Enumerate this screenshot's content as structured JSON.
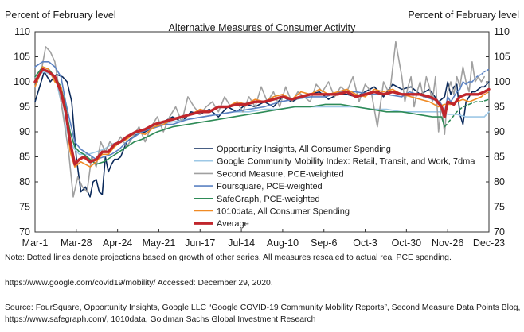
{
  "chart_data": {
    "type": "line",
    "title": "Alternative Measures of Consumer Activity",
    "ylabel_left": "Percent of February level",
    "ylabel_right": "Percent of February level",
    "ylim": [
      70,
      110
    ],
    "yticks": [
      "70",
      "75",
      "80",
      "85",
      "90",
      "95",
      "100",
      "105",
      "110"
    ],
    "x_tick_labels": [
      "Mar-1",
      "Mar-28",
      "Apr-24",
      "May-21",
      "Jun-17",
      "Jul-14",
      "Aug-10",
      "Sep-6",
      "Oct-3",
      "Oct-30",
      "Nov-26",
      "Dec-23"
    ],
    "xlim_days": [
      0,
      297
    ],
    "grid": false,
    "legend_position": "lower-center",
    "series": [
      {
        "name": "Opportunity Insights, All Consumer Spending",
        "color": "#0b2a5b",
        "width": 1.6,
        "dash": "",
        "x": [
          0,
          6,
          10,
          14,
          18,
          21,
          24,
          27,
          30,
          33,
          36,
          38,
          40,
          42,
          44,
          46,
          48,
          50,
          52,
          54,
          56,
          60,
          66,
          72,
          78,
          84,
          90,
          96,
          102,
          108,
          114,
          120,
          126,
          132,
          138,
          144,
          150,
          156,
          162,
          168,
          174,
          180,
          186,
          192,
          198,
          204,
          210,
          216,
          222,
          228,
          234,
          240,
          246,
          252,
          258,
          264,
          268,
          270,
          272,
          274,
          276,
          278,
          280,
          282,
          284,
          286,
          288,
          290,
          292,
          294
        ],
        "y": [
          96,
          102,
          100,
          101.5,
          101,
          100,
          96,
          85,
          78,
          79,
          77,
          80,
          80.5,
          78,
          77.5,
          85,
          82,
          83.5,
          84.5,
          84.5,
          85,
          88,
          89.5,
          90,
          91,
          92,
          93,
          92,
          94,
          93.5,
          94.5,
          93,
          95,
          94,
          95.5,
          95,
          96,
          95,
          97,
          96,
          97,
          97.5,
          98,
          96.5,
          97.5,
          97.5,
          97,
          98,
          99,
          97,
          99.5,
          98.5,
          99,
          97.5,
          98.5,
          96,
          97,
          100,
          97.5,
          99,
          99.5,
          93.5,
          91.5,
          96,
          97,
          98,
          98,
          98.5,
          99,
          99
        ]
      },
      {
        "name": "Opportunity Insights (projection)",
        "color": "#0b2a5b",
        "width": 1.6,
        "dash": "2,2",
        "x": [
          294,
          297
        ],
        "y": [
          99,
          100
        ]
      },
      {
        "name": "Google Community Mobility Index: Retail, Transit, and Work, 7dma",
        "color": "#9dc8e6",
        "width": 1.6,
        "dash": "",
        "x": [
          0,
          6,
          10,
          14,
          17,
          20,
          23,
          26,
          29,
          32,
          35,
          40,
          45,
          50,
          55,
          60,
          70,
          80,
          90,
          100,
          110,
          120,
          130,
          140,
          150,
          160,
          170,
          180,
          190,
          200,
          210,
          220,
          230,
          240,
          250,
          260,
          266,
          270,
          276,
          282,
          288,
          294,
          297
        ],
        "y": [
          101,
          102,
          101.5,
          100,
          96,
          91,
          88,
          86.5,
          85.5,
          85.5,
          85.5,
          86,
          86.5,
          87.5,
          88,
          89,
          90,
          91.5,
          92,
          92.5,
          93,
          93.5,
          94,
          94,
          94.5,
          94.5,
          95,
          95,
          95,
          95,
          95,
          94.5,
          94.5,
          94,
          94,
          94,
          94,
          93.5,
          93.5,
          93,
          93,
          93,
          94
        ]
      },
      {
        "name": "Second Measure, PCE-weighted",
        "color": "#a0a0a0",
        "width": 1.6,
        "dash": "",
        "x": [
          0,
          4,
          7,
          10,
          13,
          16,
          19,
          22,
          25,
          28,
          31,
          34,
          37,
          40,
          43,
          46,
          49,
          52,
          56,
          60,
          64,
          68,
          72,
          76,
          80,
          84,
          88,
          92,
          96,
          100,
          104,
          108,
          112,
          116,
          120,
          124,
          128,
          132,
          136,
          140,
          144,
          148,
          152,
          156,
          160,
          164,
          168,
          172,
          176,
          180,
          184,
          188,
          192,
          196,
          200,
          204,
          208,
          212,
          216,
          220,
          224,
          228,
          232,
          236,
          240,
          242,
          244,
          246,
          248,
          250,
          252,
          254,
          256,
          258,
          260,
          262,
          264,
          266,
          268,
          270,
          272,
          274,
          276,
          278,
          280,
          282,
          284,
          286,
          288,
          290,
          292,
          294
        ],
        "y": [
          99,
          102,
          107,
          106,
          104,
          98,
          92,
          86,
          77,
          81,
          79,
          78,
          85,
          83,
          88,
          86,
          88,
          87,
          89,
          87,
          89,
          91,
          88,
          91,
          93,
          90,
          93,
          95,
          92,
          97,
          95,
          93.5,
          95,
          96,
          94,
          97,
          95,
          96,
          94,
          97,
          95,
          99,
          96,
          98,
          95,
          99,
          96,
          98,
          97,
          96,
          99.5,
          98,
          100,
          97,
          99,
          98,
          101,
          96,
          99.5,
          98,
          91,
          100,
          97.5,
          108,
          101,
          96,
          99,
          101,
          95,
          98,
          100,
          97,
          101,
          99,
          96,
          101,
          90,
          95.5,
          89.5,
          98,
          100,
          97.5,
          101,
          99,
          103,
          100,
          98,
          104,
          100,
          101,
          100,
          101
        ]
      },
      {
        "name": "Foursquare, PCE-weighted",
        "color": "#5b82c2",
        "width": 1.6,
        "dash": "",
        "x": [
          0,
          5,
          9,
          13,
          17,
          20,
          23,
          26,
          30,
          35,
          40,
          45,
          50,
          55,
          60,
          65,
          70,
          75,
          80,
          85,
          90,
          95,
          100,
          110,
          120,
          130,
          140,
          150,
          160,
          170,
          180,
          190,
          200,
          210,
          220,
          230,
          240,
          245,
          250,
          255,
          260,
          265,
          268,
          270,
          272,
          274,
          276,
          278,
          280,
          282,
          284,
          286
        ],
        "y": [
          103,
          104,
          104,
          103,
          101,
          96,
          92,
          88,
          86.5,
          85.5,
          84.5,
          85,
          85.5,
          86.5,
          88,
          89,
          90,
          90.5,
          91,
          91.5,
          91.5,
          92,
          92.5,
          93,
          93.5,
          94,
          94.5,
          95,
          96,
          96.5,
          97,
          97,
          98,
          98,
          97.5,
          97.5,
          97,
          98,
          97.5,
          97,
          96.5,
          96,
          94,
          97,
          96,
          97,
          98,
          98.5,
          100,
          99.5,
          100,
          100
        ]
      },
      {
        "name": "Foursquare (projection)",
        "color": "#5b82c2",
        "width": 1.6,
        "dash": "2,2",
        "x": [
          286,
          289,
          292,
          294,
          297
        ],
        "y": [
          100,
          101,
          101.5,
          102,
          102.5
        ]
      },
      {
        "name": "SafeGraph, PCE-weighted",
        "color": "#2e8b57",
        "width": 1.6,
        "dash": "",
        "x": [
          0,
          5,
          9,
          13,
          17,
          20,
          23,
          26,
          29,
          32,
          36,
          40,
          45,
          50,
          55,
          60,
          65,
          70,
          80,
          90,
          100,
          110,
          120,
          130,
          140,
          150,
          160,
          170,
          180,
          190,
          200,
          210,
          220,
          230,
          240,
          250,
          260,
          266,
          268
        ],
        "y": [
          101,
          103,
          102.5,
          101,
          99,
          95,
          90,
          87,
          86,
          85.5,
          84.5,
          83.5,
          84,
          85,
          86,
          87,
          88,
          88.5,
          90,
          91,
          91.5,
          92,
          92.5,
          93,
          93.5,
          94,
          94.5,
          95,
          95,
          95.5,
          95.5,
          95,
          94.5,
          94,
          94,
          93.5,
          93,
          93,
          91
        ]
      },
      {
        "name": "SafeGraph (projection)",
        "color": "#2e8b57",
        "width": 1.6,
        "dash": "4,3",
        "x": [
          268,
          272,
          276,
          280,
          284,
          288,
          292,
          297
        ],
        "y": [
          91,
          92.5,
          94,
          95,
          95.5,
          96,
          96,
          96.5
        ]
      },
      {
        "name": "1010data, All Consumer Spending",
        "color": "#f08a24",
        "width": 1.6,
        "dash": "",
        "x": [
          0,
          5,
          9,
          13,
          17,
          20,
          23,
          26,
          30,
          33,
          36,
          40,
          44,
          48,
          52,
          56,
          60,
          66,
          72,
          78,
          84,
          90,
          96,
          102,
          108,
          114,
          120,
          126,
          132,
          138,
          144,
          150,
          156,
          162,
          168,
          174,
          180,
          186,
          192,
          198,
          204,
          210,
          216,
          222,
          228,
          234,
          240,
          246,
          252,
          258,
          264,
          268,
          272,
          276,
          280,
          284,
          288,
          292
        ],
        "y": [
          99,
          103,
          102.5,
          100,
          99,
          94,
          86,
          83,
          84,
          83.5,
          83,
          84,
          85.5,
          85.5,
          87,
          88,
          88.5,
          90,
          89.5,
          91,
          91.5,
          92.5,
          93,
          93.5,
          94.5,
          94,
          95,
          95,
          96,
          95.5,
          96.5,
          96,
          97,
          97.5,
          96.5,
          98,
          97.5,
          98.5,
          97.5,
          98,
          98.5,
          97.5,
          97,
          98.5,
          98,
          98.5,
          97.5,
          97,
          96.5,
          96,
          95,
          95.5,
          95.5,
          96,
          96.5,
          96,
          96.5,
          97
        ]
      },
      {
        "name": "1010data (projection)",
        "color": "#f08a24",
        "width": 1.6,
        "dash": "2,2",
        "x": [
          292,
          294,
          297
        ],
        "y": [
          97,
          97.5,
          98
        ]
      },
      {
        "name": "Average",
        "color": "#c0262c",
        "width": 3.4,
        "dash": "",
        "x": [
          0,
          5,
          9,
          13,
          17,
          20,
          23,
          26,
          29,
          32,
          36,
          40,
          44,
          48,
          52,
          56,
          60,
          66,
          72,
          78,
          84,
          90,
          96,
          102,
          108,
          114,
          120,
          126,
          132,
          138,
          144,
          150,
          156,
          162,
          168,
          174,
          180,
          186,
          192,
          198,
          204,
          210,
          216,
          222,
          228,
          234,
          240,
          246,
          252,
          258,
          262,
          266,
          268,
          270,
          274,
          278,
          282,
          286,
          290,
          294,
          297
        ],
        "y": [
          100,
          102.5,
          102,
          101,
          98,
          94,
          88,
          83.5,
          84.5,
          85,
          84,
          84.5,
          86,
          86,
          87.5,
          88,
          89,
          90,
          90.5,
          91.5,
          92,
          92.5,
          93,
          93.5,
          94,
          94,
          95,
          95,
          95.5,
          95.5,
          96,
          96,
          96.5,
          97,
          96.5,
          97,
          97.5,
          97.5,
          97.5,
          97.5,
          98,
          97,
          97.5,
          98,
          97.5,
          98,
          97.5,
          97.5,
          97.5,
          97,
          96.5,
          95,
          93,
          96,
          95.5,
          97,
          97.5,
          97.5,
          97.5,
          98,
          98.5
        ]
      }
    ],
    "legend": [
      {
        "label": "Opportunity Insights, All Consumer Spending",
        "color": "#0b2a5b",
        "width": 1.6
      },
      {
        "label": "Google Community Mobility Index: Retail, Transit, and Work, 7dma",
        "color": "#9dc8e6",
        "width": 1.6
      },
      {
        "label": "Second Measure, PCE-weighted",
        "color": "#a0a0a0",
        "width": 1.6
      },
      {
        "label": "Foursquare, PCE-weighted",
        "color": "#5b82c2",
        "width": 1.6
      },
      {
        "label": "SafeGraph, PCE-weighted",
        "color": "#2e8b57",
        "width": 1.6
      },
      {
        "label": "1010data, All Consumer Spending",
        "color": "#f08a24",
        "width": 1.6
      },
      {
        "label": "Average",
        "color": "#c0262c",
        "width": 3.4
      }
    ]
  },
  "notes": {
    "dotted_note": "Note: Dotted lines denote projections based on growth of other series. All measures rescaled to actual real PCE spending.",
    "url_line": "https://www.google.com/covid19/mobility/ Accessed: December 29, 2020.",
    "source_line1": "Source: FourSquare, Opportunity Insights, Google LLC “Google COVID-19 Community Mobility Reports”, Second Measure Data Points Blog,",
    "source_line2": "https://www.safegraph.com/, 1010data, Goldman Sachs Global Investment Research"
  }
}
